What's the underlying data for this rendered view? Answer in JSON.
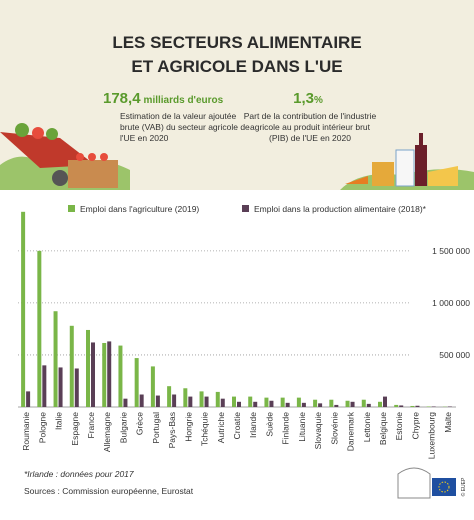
{
  "header": {
    "title_lines": [
      "LES SECTEURS ALIMENTAIRE",
      "ET AGRICOLE DANS L'UE"
    ]
  },
  "stats": [
    {
      "value": "178,4",
      "unit": "milliards d'euros",
      "lines": [
        "Estimation de la valeur ajoutée",
        "brute (VAB) du secteur agricole de",
        "l'UE en 2020"
      ]
    },
    {
      "value": "1,3",
      "unit": "%",
      "lines": [
        "Part de la contribution de l'industrie",
        "agricole au produit intérieur brut",
        "(PIB) de l'UE en 2020"
      ]
    }
  ],
  "chart_data": {
    "type": "bar",
    "categories": [
      "Roumanie",
      "Pologne",
      "Italie",
      "Espagne",
      "France",
      "Allemagne",
      "Bulgarie",
      "Grèce",
      "Portugal",
      "Pays-Bas",
      "Hongrie",
      "Tchéquie",
      "Autriche",
      "Croatie",
      "Irlande",
      "Suède",
      "Finlande",
      "Lituanie",
      "Slovaquie",
      "Slovénie",
      "Danemark",
      "Lettonie",
      "Belgique",
      "Estonie",
      "Chypre",
      "Luxembourg",
      "Malte"
    ],
    "series": [
      {
        "name": "Emploi dans l'agriculture (2019)",
        "color": "#7ab648",
        "values": [
          1875000,
          1500000,
          920000,
          780000,
          740000,
          615000,
          590000,
          470000,
          390000,
          200000,
          180000,
          150000,
          145000,
          100000,
          100000,
          90000,
          90000,
          90000,
          70000,
          70000,
          60000,
          70000,
          50000,
          20000,
          10000,
          5000,
          3000
        ]
      },
      {
        "name": "Emploi dans la production alimentaire (2018)*",
        "color": "#5a3f56",
        "values": [
          150000,
          400000,
          380000,
          370000,
          620000,
          630000,
          80000,
          120000,
          110000,
          120000,
          100000,
          100000,
          80000,
          50000,
          50000,
          60000,
          40000,
          40000,
          35000,
          20000,
          50000,
          30000,
          100000,
          15000,
          12000,
          5000,
          5000
        ]
      }
    ],
    "ylim": [
      0,
      1950000
    ],
    "yticks": [
      {
        "value": 500000,
        "label": "500 000"
      },
      {
        "value": 1000000,
        "label": "1 000 000"
      },
      {
        "value": 1500000,
        "label": "1 500 000"
      }
    ],
    "grid": true,
    "legend": "top"
  },
  "footnote": "*Irlande : données pour 2017",
  "source": "Sources : Commission européenne, Eurostat",
  "logo_text": "© EUEP"
}
